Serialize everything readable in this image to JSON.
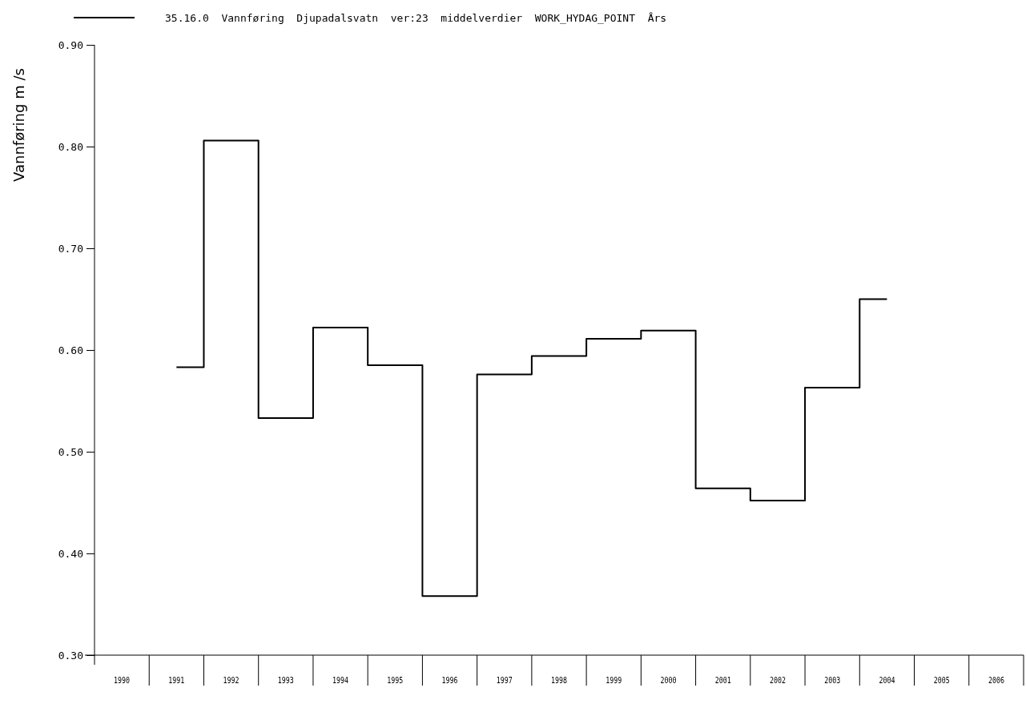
{
  "chart_data": {
    "type": "step",
    "ylabel": "Vannføring  m /s",
    "categories": [
      "1990",
      "1991",
      "1992",
      "1993",
      "1994",
      "1995",
      "1996",
      "1997",
      "1998",
      "1999",
      "2000",
      "2001",
      "2002",
      "2003",
      "2004",
      "2005",
      "2006"
    ],
    "series": [
      {
        "name": "35.16.0  Vannføring  Djupadalsvatn  ver:23  middelverdier  WORK_HYDAG_POINT  Års",
        "color": "#000000",
        "values": [
          null,
          0.583,
          0.806,
          0.533,
          0.622,
          0.585,
          0.358,
          0.576,
          0.594,
          0.611,
          0.619,
          0.464,
          0.452,
          0.563,
          0.65,
          null,
          null
        ]
      }
    ],
    "ylim": [
      0.3,
      0.9
    ],
    "yticks": [
      {
        "value": 0.3,
        "label": "0.30"
      },
      {
        "value": 0.4,
        "label": "0.40"
      },
      {
        "value": 0.5,
        "label": "0.50"
      },
      {
        "value": 0.6,
        "label": "0.60"
      },
      {
        "value": 0.7,
        "label": "0.70"
      },
      {
        "value": 0.8,
        "label": "0.80"
      },
      {
        "value": 0.9,
        "label": "0.90"
      }
    ],
    "legend": "top left",
    "grid": false
  }
}
